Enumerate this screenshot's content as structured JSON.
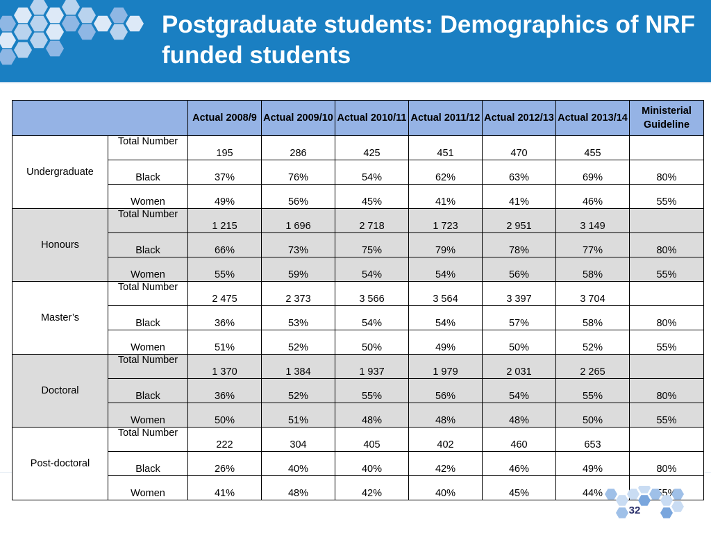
{
  "title": "Postgraduate students: Demographics of NRF funded students",
  "page_number": "32",
  "colors": {
    "header_bg": "#1a7fc2",
    "table_header_bg": "#95b3e5",
    "shade_row_bg": "#dcdcdc"
  },
  "table": {
    "columns": [
      {
        "label": "Actual 2008/9"
      },
      {
        "label": "Actual 2009/10"
      },
      {
        "label": "Actual 2010/11"
      },
      {
        "label": "Actual 2011/12"
      },
      {
        "label": "Actual 2012/13"
      },
      {
        "label": "Actual 2013/14"
      },
      {
        "label": "Ministerial Guideline"
      }
    ],
    "groups": [
      {
        "name": "Undergraduate",
        "rows": [
          {
            "metric": "Total Number",
            "values": [
              "195",
              "286",
              "425",
              "451",
              "470",
              "455",
              ""
            ]
          },
          {
            "metric": "Black",
            "values": [
              "37%",
              "76%",
              "54%",
              "62%",
              "63%",
              "69%",
              "80%"
            ]
          },
          {
            "metric": "Women",
            "values": [
              "49%",
              "56%",
              "45%",
              "41%",
              "41%",
              "46%",
              "55%"
            ]
          }
        ]
      },
      {
        "name": "Honours",
        "rows": [
          {
            "metric": "Total Number",
            "values": [
              "1 215",
              "1 696",
              "2 718",
              "1 723",
              "2 951",
              "3 149",
              ""
            ]
          },
          {
            "metric": "Black",
            "values": [
              "66%",
              "73%",
              "75%",
              "79%",
              "78%",
              "77%",
              "80%"
            ]
          },
          {
            "metric": "Women",
            "values": [
              "55%",
              "59%",
              "54%",
              "54%",
              "56%",
              "58%",
              "55%"
            ]
          }
        ]
      },
      {
        "name": "Master’s",
        "rows": [
          {
            "metric": "Total Number",
            "values": [
              "2 475",
              "2 373",
              "3 566",
              "3 564",
              "3 397",
              "3 704",
              ""
            ]
          },
          {
            "metric": "Black",
            "values": [
              "36%",
              "53%",
              "54%",
              "54%",
              "57%",
              "58%",
              "80%"
            ]
          },
          {
            "metric": "Women",
            "values": [
              "51%",
              "52%",
              "50%",
              "49%",
              "50%",
              "52%",
              "55%"
            ]
          }
        ]
      },
      {
        "name": "Doctoral",
        "rows": [
          {
            "metric": "Total Number",
            "values": [
              "1 370",
              "1 384",
              "1 937",
              "1 979",
              "2 031",
              "2 265",
              ""
            ]
          },
          {
            "metric": "Black",
            "values": [
              "36%",
              "52%",
              "55%",
              "56%",
              "54%",
              "55%",
              "80%"
            ]
          },
          {
            "metric": "Women",
            "values": [
              "50%",
              "51%",
              "48%",
              "48%",
              "48%",
              "50%",
              "55%"
            ]
          }
        ]
      },
      {
        "name": "Post-doctoral",
        "rows": [
          {
            "metric": "Total Number",
            "values": [
              "222",
              "304",
              "405",
              "402",
              "460",
              "653",
              ""
            ]
          },
          {
            "metric": "Black",
            "values": [
              "26%",
              "40%",
              "40%",
              "42%",
              "46%",
              "49%",
              "80%"
            ]
          },
          {
            "metric": "Women",
            "values": [
              "41%",
              "48%",
              "42%",
              "40%",
              "45%",
              "44%",
              "55%"
            ]
          }
        ]
      }
    ]
  }
}
